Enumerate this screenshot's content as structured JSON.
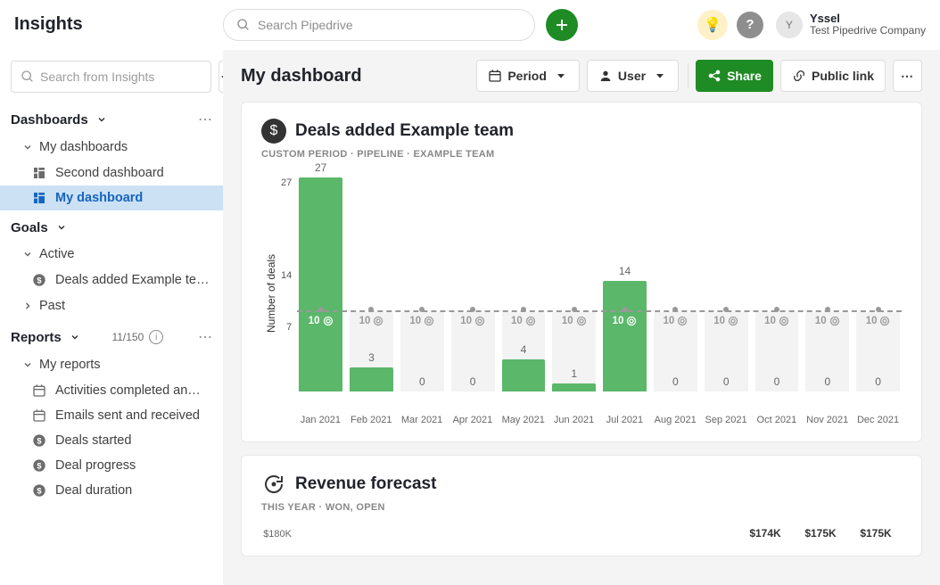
{
  "brand": "Insights",
  "global_search_placeholder": "Search Pipedrive",
  "user": {
    "initial": "Y",
    "name": "Yssel",
    "company": "Test Pipedrive Company"
  },
  "sidebar": {
    "search_placeholder": "Search from Insights",
    "dashboards_label": "Dashboards",
    "my_dashboards_label": "My dashboards",
    "dashboards": [
      {
        "label": "Second dashboard"
      },
      {
        "label": "My dashboard"
      }
    ],
    "goals_label": "Goals",
    "active_label": "Active",
    "goals_active": [
      {
        "label": "Deals added Example te…"
      }
    ],
    "past_label": "Past",
    "reports_label": "Reports",
    "reports_count": "11/150",
    "my_reports_label": "My reports",
    "reports": [
      {
        "label": "Activities completed an…",
        "icon": "calendar"
      },
      {
        "label": "Emails sent and received",
        "icon": "calendar"
      },
      {
        "label": "Deals started",
        "icon": "dollar"
      },
      {
        "label": "Deal progress",
        "icon": "dollar"
      },
      {
        "label": "Deal duration",
        "icon": "dollar"
      }
    ]
  },
  "main": {
    "title": "My dashboard",
    "period_label": "Period",
    "user_label": "User",
    "share_label": "Share",
    "public_label": "Public link"
  },
  "chart1": {
    "title": "Deals added Example team",
    "sub": "CUSTOM PERIOD   ·   PIPELINE   ·   EXAMPLE TEAM",
    "ylabel": "Number of deals",
    "ymax": 27,
    "yticks": [
      "27",
      "14",
      "7"
    ],
    "target": 10,
    "colors": {
      "bar": "#5bb76a",
      "bar_bg": "#f3f3f3",
      "target": "#9a9a9a",
      "label": "#666666"
    },
    "months": [
      "Jan 2021",
      "Feb 2021",
      "Mar 2021",
      "Apr 2021",
      "May 2021",
      "Jun 2021",
      "Jul 2021",
      "Aug 2021",
      "Sep 2021",
      "Oct 2021",
      "Nov 2021",
      "Dec 2021"
    ],
    "values": [
      27,
      3,
      0,
      0,
      4,
      1,
      14,
      0,
      0,
      0,
      0,
      0
    ]
  },
  "chart2": {
    "title": "Revenue forecast",
    "sub": "THIS YEAR   ·   WON, OPEN",
    "ylabel": "$180K",
    "labels": [
      "",
      "",
      "",
      "",
      "",
      "",
      "",
      "",
      "$174K",
      "$175K",
      "$175K"
    ]
  }
}
